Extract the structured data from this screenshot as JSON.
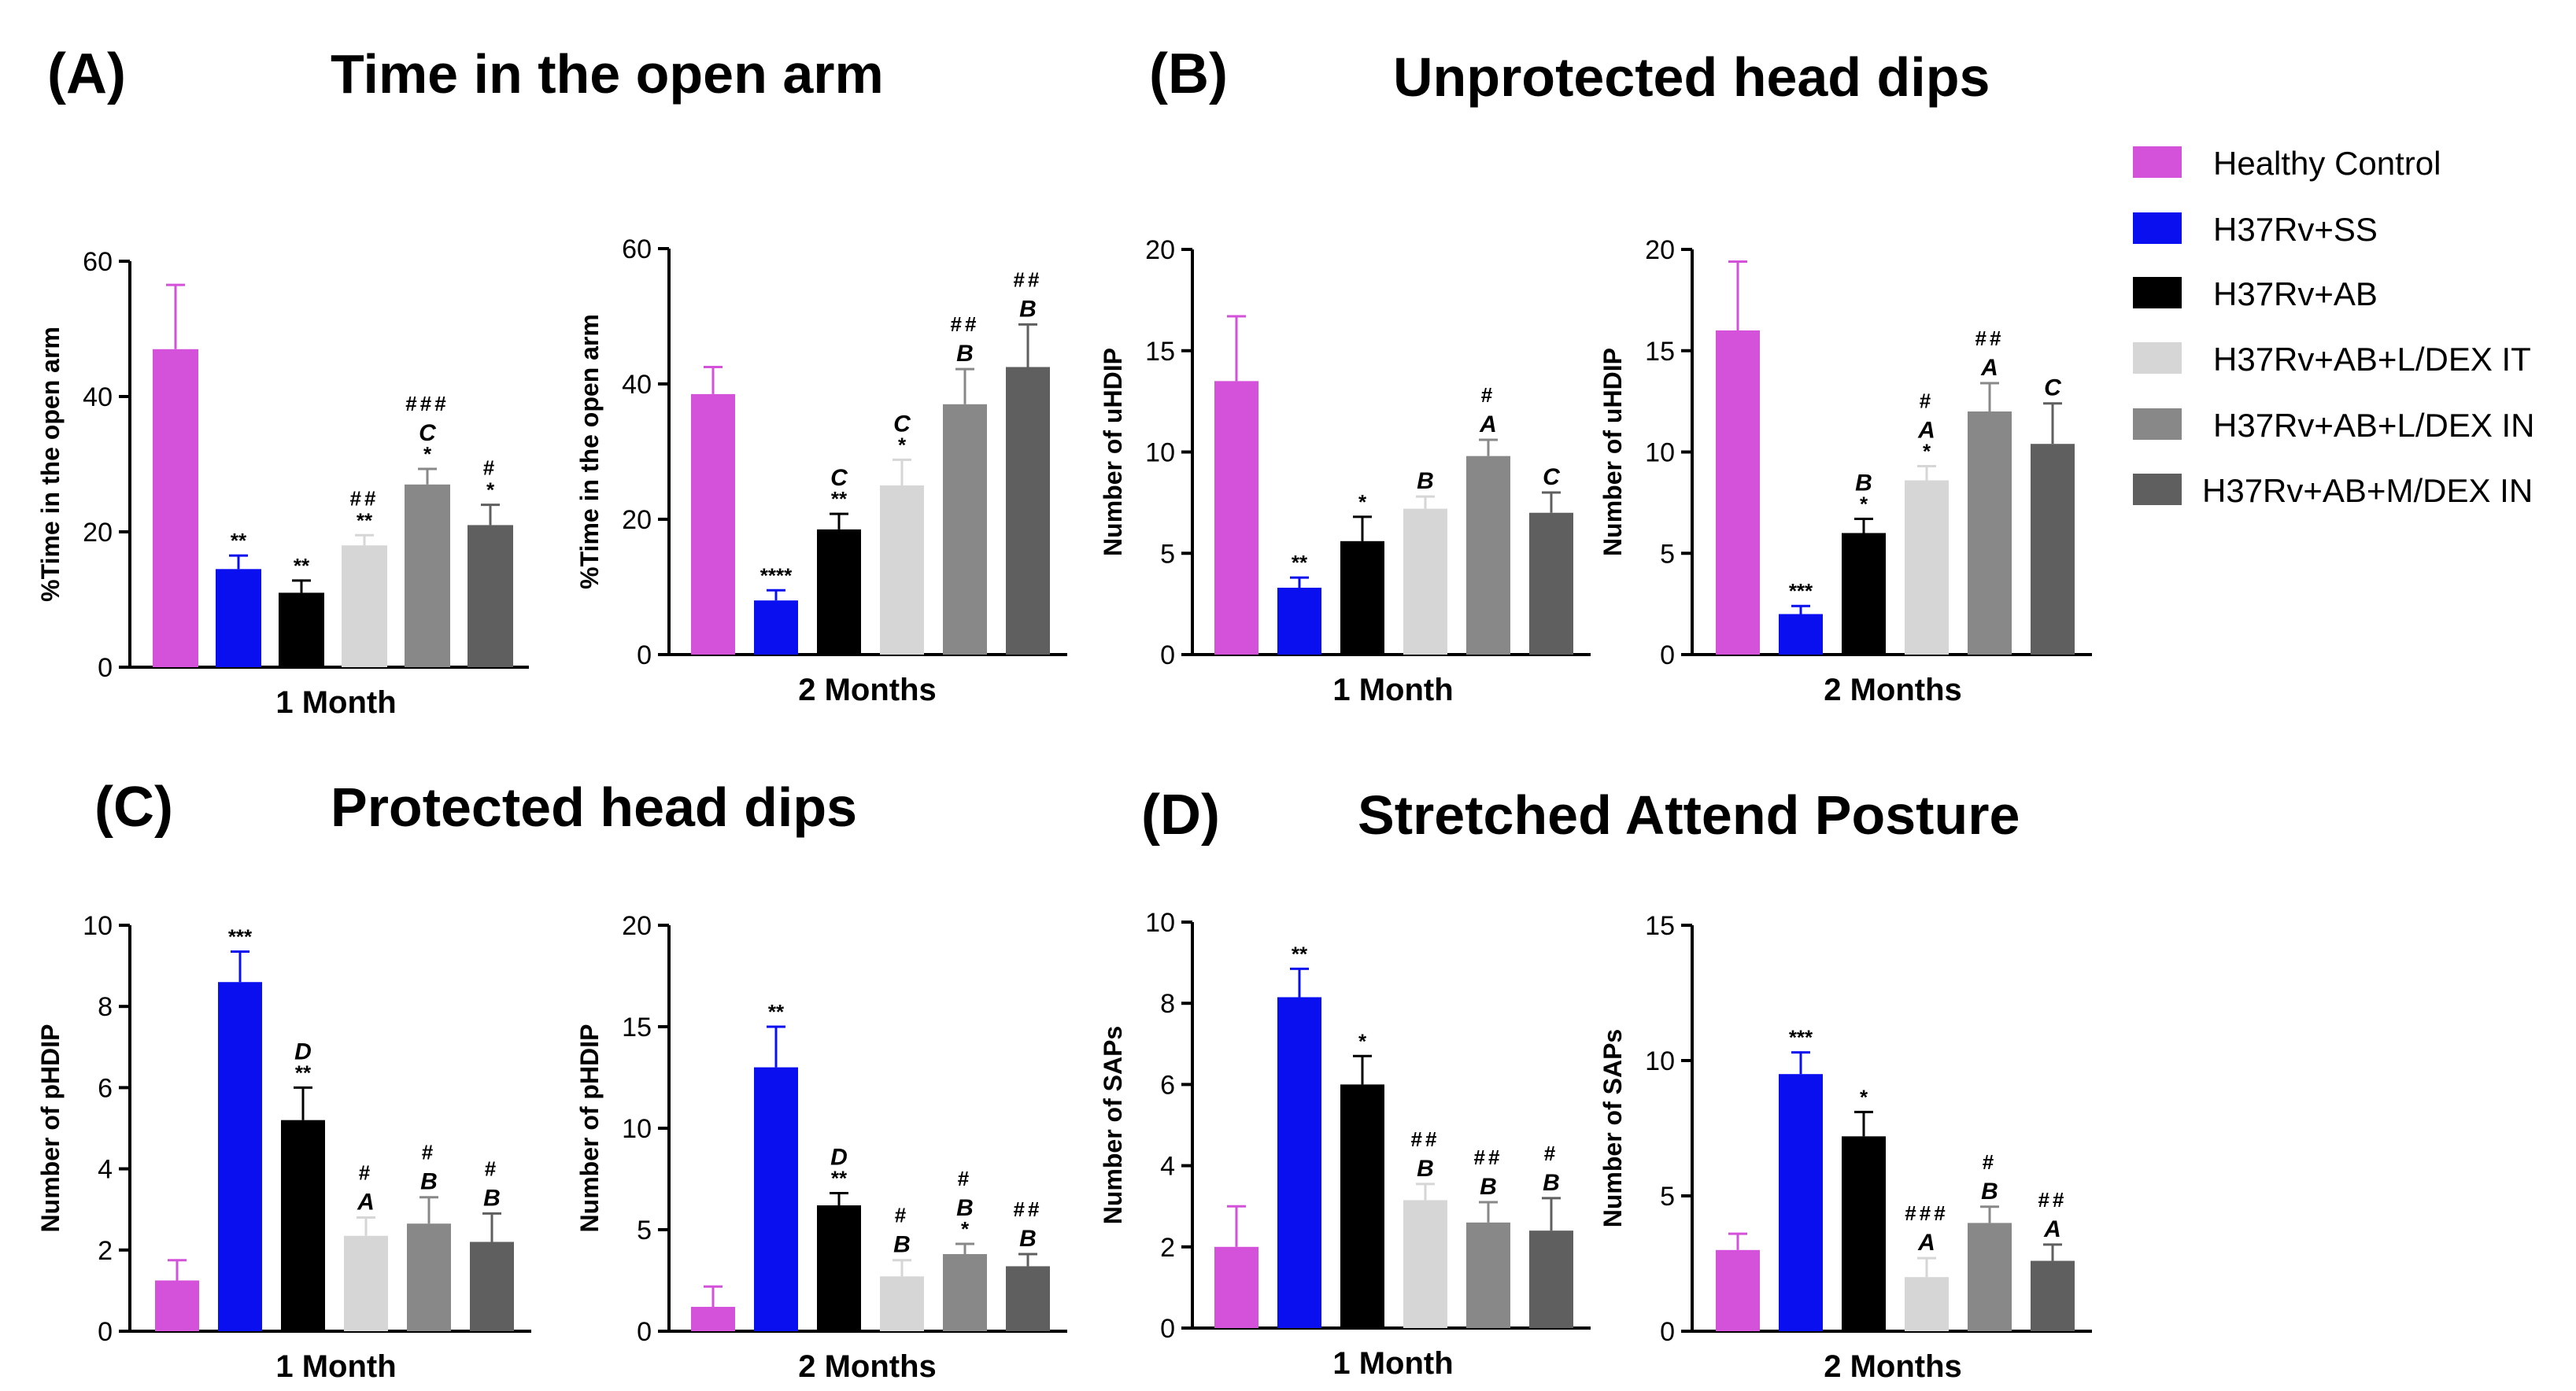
{
  "figure": {
    "panels": [
      {
        "letter": "(A)",
        "title": "Time in the open arm"
      },
      {
        "letter": "(B)",
        "title": "Unprotected head dips"
      },
      {
        "letter": "(C)",
        "title": "Protected head dips"
      },
      {
        "letter": "(D)",
        "title": "Stretched Attend Posture"
      }
    ],
    "legend": [
      {
        "name": "Healthy Control",
        "color": "#D452D9"
      },
      {
        "name": "H37Rv+SS",
        "color": "#0A0FF0"
      },
      {
        "name": "H37Rv+AB",
        "color": "#000000"
      },
      {
        "name": "H37Rv+AB+L/DEX IT",
        "color": "#D6D6D6"
      },
      {
        "name": "H37Rv+AB+L/DEX IN",
        "color": "#888888"
      },
      {
        "name": "H37Rv+AB+M/DEX IN",
        "color": "#5F5F5F"
      }
    ]
  },
  "chart_data": [
    {
      "id": "A1",
      "type": "bar",
      "panel": "(A)",
      "title": "Time in the open arm",
      "xlabel": "1 Month",
      "ylabel": "%Time in the open arm",
      "ylim": [
        0,
        60
      ],
      "yticks": [
        0,
        20,
        40,
        60
      ],
      "categories": [
        "Healthy Control",
        "H37Rv+SS",
        "H37Rv+AB",
        "H37Rv+AB+L/DEX IT",
        "H37Rv+AB+L/DEX IN",
        "H37Rv+AB+M/DEX IN"
      ],
      "values": [
        47,
        14.5,
        11,
        18,
        27,
        21
      ],
      "errors": [
        9.5,
        2.0,
        1.8,
        1.5,
        2.3,
        3.0
      ],
      "annotations": [
        [],
        [
          "**"
        ],
        [
          "**"
        ],
        [
          "**",
          "##"
        ],
        [
          "*",
          "C",
          "###"
        ],
        [
          "*",
          "#"
        ]
      ]
    },
    {
      "id": "A2",
      "type": "bar",
      "panel": "(A)",
      "title": "Time in the open arm",
      "xlabel": "2 Months",
      "ylabel": "%Time in the open arm",
      "ylim": [
        0,
        60
      ],
      "yticks": [
        0,
        20,
        40,
        60
      ],
      "categories": [
        "Healthy Control",
        "H37Rv+SS",
        "H37Rv+AB",
        "H37Rv+AB+L/DEX IT",
        "H37Rv+AB+L/DEX IN",
        "H37Rv+AB+M/DEX IN"
      ],
      "values": [
        38.5,
        8,
        18.5,
        25,
        37,
        42.5
      ],
      "errors": [
        4,
        1.5,
        2.3,
        3.8,
        5.2,
        6.3
      ],
      "annotations": [
        [],
        [
          "****"
        ],
        [
          "**",
          "C"
        ],
        [
          "*",
          "C"
        ],
        [
          "B",
          "##"
        ],
        [
          "B",
          "##"
        ]
      ]
    },
    {
      "id": "B1",
      "type": "bar",
      "panel": "(B)",
      "title": "Unprotected head dips",
      "xlabel": "1 Month",
      "ylabel": "Number of uHDIP",
      "ylim": [
        0,
        20
      ],
      "yticks": [
        0,
        5,
        10,
        15,
        20
      ],
      "categories": [
        "Healthy Control",
        "H37Rv+SS",
        "H37Rv+AB",
        "H37Rv+AB+L/DEX IT",
        "H37Rv+AB+L/DEX IN",
        "H37Rv+AB+M/DEX IN"
      ],
      "values": [
        13.5,
        3.3,
        5.6,
        7.2,
        9.8,
        7
      ],
      "errors": [
        3.2,
        0.5,
        1.2,
        0.6,
        0.8,
        1.0
      ],
      "annotations": [
        [],
        [
          "**"
        ],
        [
          "*"
        ],
        [
          "B"
        ],
        [
          "A",
          "#"
        ],
        [
          "C"
        ]
      ]
    },
    {
      "id": "B2",
      "type": "bar",
      "panel": "(B)",
      "title": "Unprotected head dips",
      "xlabel": "2 Months",
      "ylabel": "Number of uHDIP",
      "ylim": [
        0,
        20
      ],
      "yticks": [
        0,
        5,
        10,
        15,
        20
      ],
      "categories": [
        "Healthy Control",
        "H37Rv+SS",
        "H37Rv+AB",
        "H37Rv+AB+L/DEX IT",
        "H37Rv+AB+L/DEX IN",
        "H37Rv+AB+M/DEX IN"
      ],
      "values": [
        16,
        2,
        6,
        8.6,
        12,
        10.4
      ],
      "errors": [
        3.4,
        0.4,
        0.7,
        0.7,
        1.4,
        2.0
      ],
      "annotations": [
        [],
        [
          "***"
        ],
        [
          "*",
          "B"
        ],
        [
          "*",
          "A",
          "#"
        ],
        [
          "A",
          "##"
        ],
        [
          "C"
        ]
      ]
    },
    {
      "id": "C1",
      "type": "bar",
      "panel": "(C)",
      "title": "Protected head dips",
      "xlabel": "1 Month",
      "ylabel": "Number of pHDIP",
      "ylim": [
        0,
        10
      ],
      "yticks": [
        0,
        2,
        4,
        6,
        8,
        10
      ],
      "categories": [
        "Healthy Control",
        "H37Rv+SS",
        "H37Rv+AB",
        "H37Rv+AB+L/DEX IT",
        "H37Rv+AB+L/DEX IN",
        "H37Rv+AB+M/DEX IN"
      ],
      "values": [
        1.25,
        8.6,
        5.2,
        2.35,
        2.65,
        2.2
      ],
      "errors": [
        0.5,
        0.75,
        0.8,
        0.45,
        0.65,
        0.7
      ],
      "annotations": [
        [],
        [
          "***"
        ],
        [
          "**",
          "D"
        ],
        [
          "A",
          "#"
        ],
        [
          "B",
          "#"
        ],
        [
          "B",
          "#"
        ]
      ]
    },
    {
      "id": "C2",
      "type": "bar",
      "panel": "(C)",
      "title": "Protected head dips",
      "xlabel": "2 Months",
      "ylabel": "Number of pHDIP",
      "ylim": [
        0,
        20
      ],
      "yticks": [
        0,
        5,
        10,
        15,
        20
      ],
      "categories": [
        "Healthy Control",
        "H37Rv+SS",
        "H37Rv+AB",
        "H37Rv+AB+L/DEX IT",
        "H37Rv+AB+L/DEX IN",
        "H37Rv+AB+M/DEX IN"
      ],
      "values": [
        1.2,
        13,
        6.2,
        2.7,
        3.8,
        3.2
      ],
      "errors": [
        1.0,
        2.0,
        0.6,
        0.8,
        0.5,
        0.6
      ],
      "annotations": [
        [],
        [
          "**"
        ],
        [
          "**",
          "D"
        ],
        [
          "B",
          "#"
        ],
        [
          "*",
          "B",
          "#"
        ],
        [
          "B",
          "##"
        ]
      ]
    },
    {
      "id": "D1",
      "type": "bar",
      "panel": "(D)",
      "title": "Stretched Attend Posture",
      "xlabel": "1 Month",
      "ylabel": "Number of SAPs",
      "ylim": [
        0,
        10
      ],
      "yticks": [
        0,
        2,
        4,
        6,
        8,
        10
      ],
      "categories": [
        "Healthy Control",
        "H37Rv+SS",
        "H37Rv+AB",
        "H37Rv+AB+L/DEX IT",
        "H37Rv+AB+L/DEX IN",
        "H37Rv+AB+M/DEX IN"
      ],
      "values": [
        2,
        8.15,
        6,
        3.15,
        2.6,
        2.4
      ],
      "errors": [
        1.0,
        0.7,
        0.7,
        0.4,
        0.5,
        0.8
      ],
      "annotations": [
        [],
        [
          "**"
        ],
        [
          "*"
        ],
        [
          "B",
          "##"
        ],
        [
          "B",
          "##"
        ],
        [
          "B",
          "#"
        ]
      ]
    },
    {
      "id": "D2",
      "type": "bar",
      "panel": "(D)",
      "title": "Stretched Attend Posture",
      "xlabel": "2 Months",
      "ylabel": "Number of SAPs",
      "ylim": [
        0,
        15
      ],
      "yticks": [
        0,
        5,
        10,
        15
      ],
      "categories": [
        "Healthy Control",
        "H37Rv+SS",
        "H37Rv+AB",
        "H37Rv+AB+L/DEX IT",
        "H37Rv+AB+L/DEX IN",
        "H37Rv+AB+M/DEX IN"
      ],
      "values": [
        3,
        9.5,
        7.2,
        2,
        4,
        2.6
      ],
      "errors": [
        0.6,
        0.8,
        0.9,
        0.7,
        0.6,
        0.6
      ],
      "annotations": [
        [],
        [
          "***"
        ],
        [
          "*"
        ],
        [
          "A",
          "###"
        ],
        [
          "B",
          "#"
        ],
        [
          "A",
          "##"
        ]
      ]
    }
  ]
}
